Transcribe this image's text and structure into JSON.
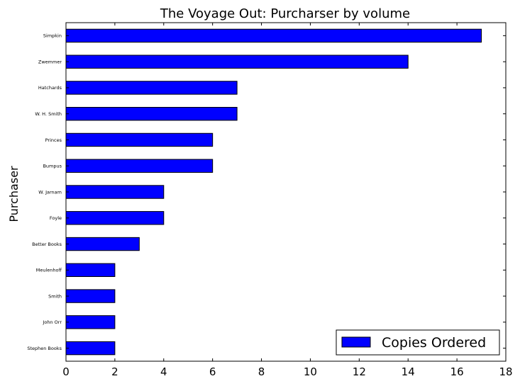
{
  "chart_data": {
    "type": "bar",
    "orientation": "horizontal",
    "title": "The Voyage Out: Purcharser by volume",
    "xlabel": "",
    "ylabel": "Purchaser",
    "xlim": [
      0,
      18
    ],
    "xticks": [
      "0",
      "2",
      "4",
      "6",
      "8",
      "10",
      "12",
      "14",
      "16",
      "18"
    ],
    "categories": [
      "Simpkin",
      "Zwemmer",
      "Hatchards",
      "W. H. Smith",
      "Princes",
      "Bumpus",
      "W. Jarnam",
      "Foyle",
      "Better Books",
      "Meulenhoff",
      "Smith",
      "John Orr",
      "Stephen Books"
    ],
    "series": [
      {
        "name": "Copies Ordered",
        "values": [
          17,
          14,
          7,
          7,
          6,
          6,
          4,
          4,
          3,
          2,
          2,
          2,
          2
        ],
        "color": "#0000ff"
      }
    ],
    "legend_position": "bottom-right",
    "grid": false
  }
}
